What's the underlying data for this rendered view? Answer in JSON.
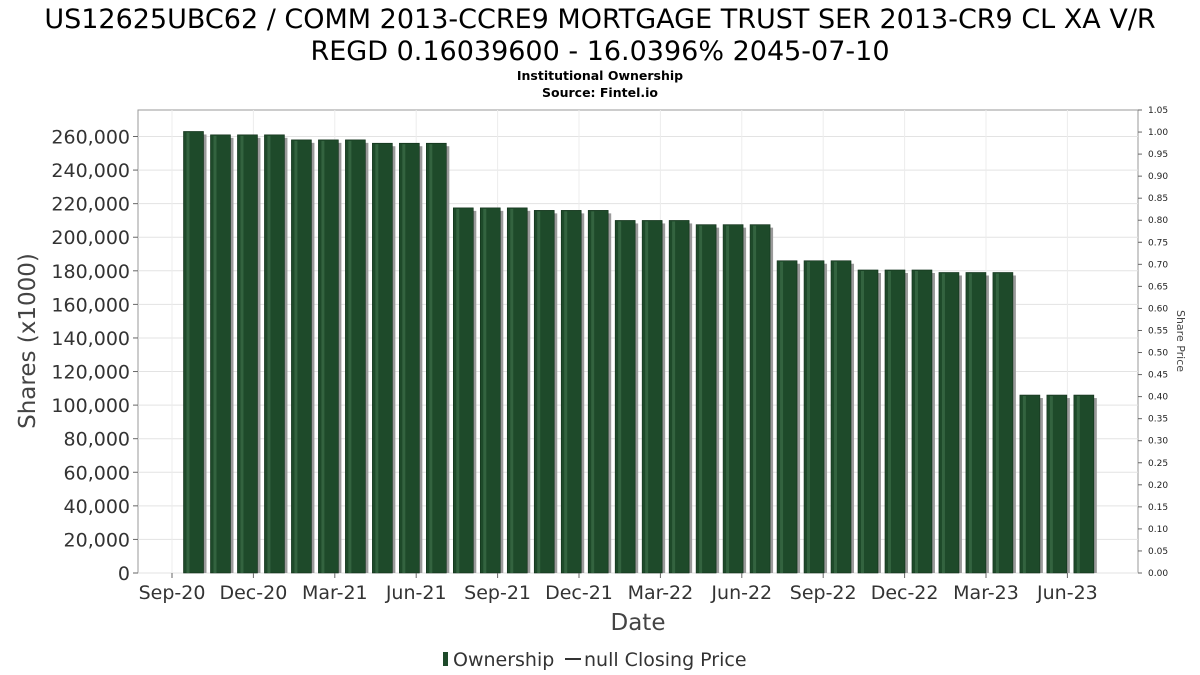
{
  "chart_data": {
    "type": "bar",
    "title": "US12625UBC62 / COMM 2013-CCRE9 MORTGAGE TRUST SER 2013-CR9 CL XA V/R REGD 0.16039600 - 16.0396% 2045-07-10",
    "title_lines": [
      "US12625UBC62 / COMM 2013-CCRE9 MORTGAGE TRUST SER 2013-CR9 CL XA V/R",
      "REGD 0.16039600 - 16.0396% 2045-07-10"
    ],
    "subtitle": "Institutional Ownership",
    "source": "Source: Fintel.io",
    "xlabel": "Date",
    "ylabel": "Shares (x1000)",
    "y2label": "Share Price",
    "ylim": [
      0,
      270000
    ],
    "y2lim": [
      0,
      1.05
    ],
    "y_ticks": [
      0,
      20000,
      40000,
      60000,
      80000,
      100000,
      120000,
      140000,
      160000,
      180000,
      200000,
      220000,
      240000,
      260000
    ],
    "y_tick_labels": [
      "0",
      "20,000",
      "40,000",
      "60,000",
      "80,000",
      "100,000",
      "120,000",
      "140,000",
      "160,000",
      "180,000",
      "200,000",
      "220,000",
      "240,000",
      "260,000"
    ],
    "y2_ticks": [
      0,
      0.05,
      0.1,
      0.15,
      0.2,
      0.25,
      0.3,
      0.35,
      0.4,
      0.45,
      0.5,
      0.55,
      0.6,
      0.65,
      0.7,
      0.75,
      0.8,
      0.85,
      0.9,
      0.95,
      1.0,
      1.05
    ],
    "y2_tick_labels": [
      "0.00",
      "0.05",
      "0.10",
      "0.15",
      "0.20",
      "0.25",
      "0.30",
      "0.35",
      "0.40",
      "0.45",
      "0.50",
      "0.55",
      "0.60",
      "0.65",
      "0.70",
      "0.75",
      "0.80",
      "0.85",
      "0.90",
      "0.95",
      "1.00",
      "1.05"
    ],
    "x_tick_labels": [
      "Sep-20",
      "Dec-20",
      "Mar-21",
      "Jun-21",
      "Sep-21",
      "Dec-21",
      "Mar-22",
      "Jun-22",
      "Sep-22",
      "Dec-22",
      "Mar-23",
      "Jun-23"
    ],
    "grid": true,
    "legend_position": "bottom",
    "series": [
      {
        "name": "Ownership",
        "color": "#1e4a2a",
        "values": [
          263000,
          261000,
          261000,
          261000,
          258000,
          258000,
          258000,
          256000,
          256000,
          256000,
          217500,
          217500,
          217500,
          216000,
          216000,
          216000,
          210000,
          210000,
          210000,
          207500,
          207500,
          207500,
          186000,
          186000,
          186000,
          180500,
          180500,
          180500,
          179000,
          179000,
          179000,
          106000,
          106000,
          106000
        ]
      },
      {
        "name": "null Closing Price",
        "color": "#333333",
        "values": []
      }
    ]
  }
}
